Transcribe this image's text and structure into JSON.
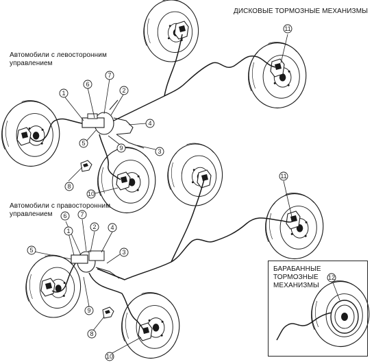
{
  "labels": {
    "disc_brakes": "ДИСКОВЫЕ ТОРМОЗНЫЕ МЕХАНИЗМЫ",
    "lhd": "Автомобили с левосторонним\nуправлением",
    "rhd": "Автомобили с правосторонним\nуправлением",
    "drum_brakes": "БАРАБАННЫЕ\nТОРМОЗНЫЕ\nМЕХАНИЗМЫ"
  },
  "callouts": {
    "lhd": [
      "1",
      "6",
      "7",
      "2",
      "4",
      "5",
      "9",
      "3",
      "8",
      "10",
      "11"
    ],
    "rhd": [
      "6",
      "7",
      "1",
      "2",
      "4",
      "5",
      "3",
      "9",
      "8",
      "10",
      "11"
    ],
    "drum": [
      "12"
    ]
  },
  "colors": {
    "line": "#1a1a1a",
    "background": "#ffffff"
  }
}
